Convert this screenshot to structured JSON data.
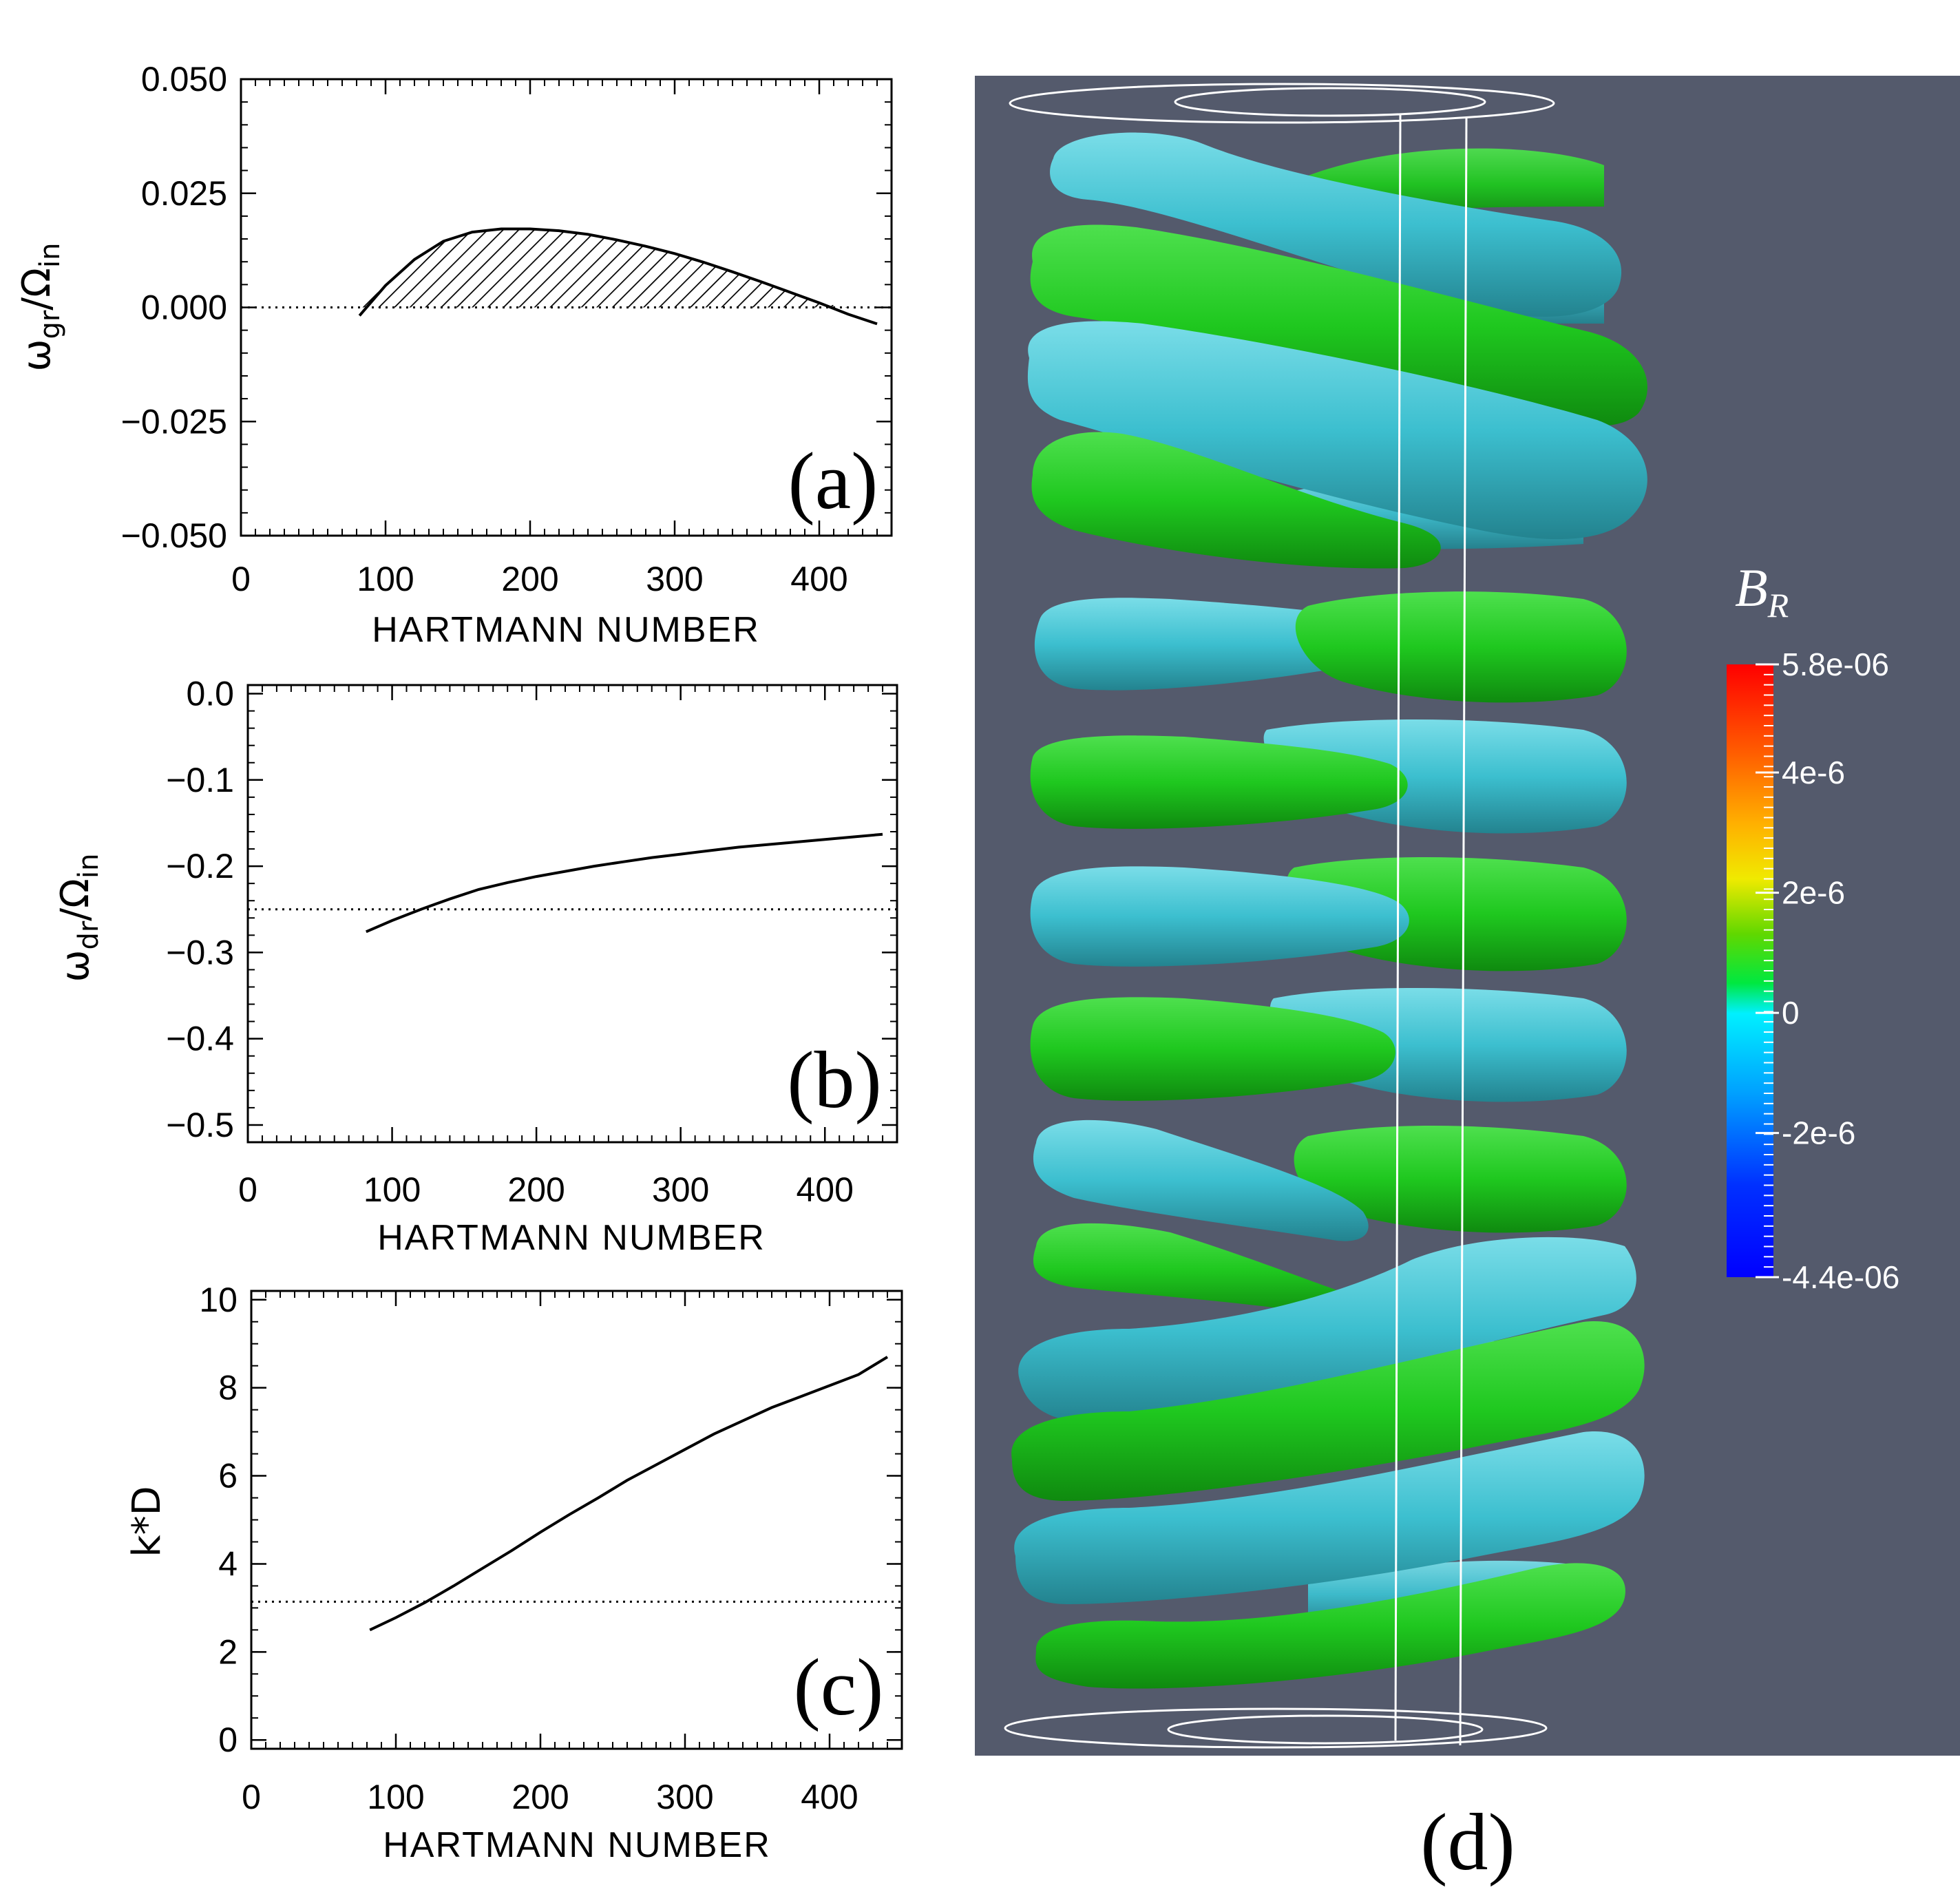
{
  "chart_data": [
    {
      "type": "line",
      "panel": "(a)",
      "xlabel": "HARTMANN NUMBER",
      "ylabel": {
        "main": "ω",
        "sub1": "gr",
        "mid": "/Ω",
        "sub2": "in"
      },
      "xlim": [
        0,
        450
      ],
      "ylim": [
        -0.05,
        0.05
      ],
      "xticks": [
        0,
        100,
        200,
        300,
        400
      ],
      "xtick_labels": [
        "0",
        "100",
        "200",
        "300",
        "400"
      ],
      "yticks": [
        0.05,
        0.025,
        0.0,
        -0.025,
        -0.05
      ],
      "ytick_labels": [
        "0.050",
        "0.025",
        "0.000",
        "−0.025",
        "−0.050"
      ],
      "x": [
        82,
        100,
        120,
        140,
        160,
        180,
        200,
        220,
        240,
        260,
        280,
        300,
        320,
        340,
        360,
        380,
        400,
        420,
        440
      ],
      "y": [
        -0.0018,
        0.0048,
        0.0105,
        0.0145,
        0.0165,
        0.0172,
        0.0172,
        0.0168,
        0.016,
        0.0148,
        0.0134,
        0.0118,
        0.0099,
        0.0078,
        0.0056,
        0.0033,
        0.001,
        -0.0015,
        -0.0036
      ],
      "reference_line": 0.0,
      "shaded": "positive growth rate (hatched)"
    },
    {
      "type": "line",
      "panel": "(b)",
      "xlabel": "HARTMANN NUMBER",
      "ylabel": {
        "main": "ω",
        "sub1": "dr",
        "mid": "/Ω",
        "sub2": "in"
      },
      "xlim": [
        0,
        450
      ],
      "ylim": [
        -0.52,
        0.01
      ],
      "xticks": [
        0,
        100,
        200,
        300,
        400
      ],
      "xtick_labels": [
        "0",
        "100",
        "200",
        "300",
        "400"
      ],
      "yticks": [
        0.0,
        -0.1,
        -0.2,
        -0.3,
        -0.4,
        -0.5
      ],
      "ytick_labels": [
        "0.0",
        "−0.1",
        "−0.2",
        "−0.3",
        "−0.4",
        "−0.5"
      ],
      "x": [
        82,
        100,
        120,
        140,
        160,
        180,
        200,
        220,
        240,
        260,
        280,
        300,
        320,
        340,
        360,
        380,
        400,
        420,
        440
      ],
      "y": [
        -0.276,
        -0.263,
        -0.25,
        -0.238,
        -0.227,
        -0.219,
        -0.212,
        -0.206,
        -0.2,
        -0.195,
        -0.19,
        -0.186,
        -0.182,
        -0.178,
        -0.175,
        -0.172,
        -0.169,
        -0.166,
        -0.163
      ],
      "reference_line": -0.25
    },
    {
      "type": "line",
      "panel": "(c)",
      "xlabel": "HARTMANN NUMBER",
      "ylabel": "k*D",
      "xlim": [
        0,
        450
      ],
      "ylim": [
        -0.2,
        10.2
      ],
      "xticks": [
        0,
        100,
        200,
        300,
        400
      ],
      "xtick_labels": [
        "0",
        "100",
        "200",
        "300",
        "400"
      ],
      "yticks": [
        10,
        8,
        6,
        4,
        2,
        0
      ],
      "ytick_labels": [
        "10",
        "8",
        "6",
        "4",
        "2",
        "0"
      ],
      "x": [
        82,
        100,
        120,
        140,
        160,
        180,
        200,
        220,
        240,
        260,
        280,
        300,
        320,
        340,
        360,
        380,
        400,
        420,
        440
      ],
      "y": [
        2.5,
        2.78,
        3.12,
        3.5,
        3.9,
        4.3,
        4.72,
        5.12,
        5.5,
        5.9,
        6.25,
        6.6,
        6.95,
        7.25,
        7.55,
        7.8,
        8.05,
        8.3,
        8.7
      ],
      "reference_line": 3.14
    }
  ],
  "panel_d": {
    "label": "(d)",
    "colorbar": {
      "title_main": "B",
      "title_sub": "R",
      "tick_labels": [
        "5.8e-06",
        "4e-6",
        "2e-6",
        "0",
        "-2e-6",
        "-4.4e-06"
      ],
      "tick_values": [
        5.8e-06,
        4e-06,
        2e-06,
        0,
        -2e-06,
        -4.4e-06
      ]
    },
    "colors": {
      "background": "#545a6c",
      "positive_isosurface": "#1fc81f",
      "negative_isosurface": "#3cbfcf"
    }
  }
}
